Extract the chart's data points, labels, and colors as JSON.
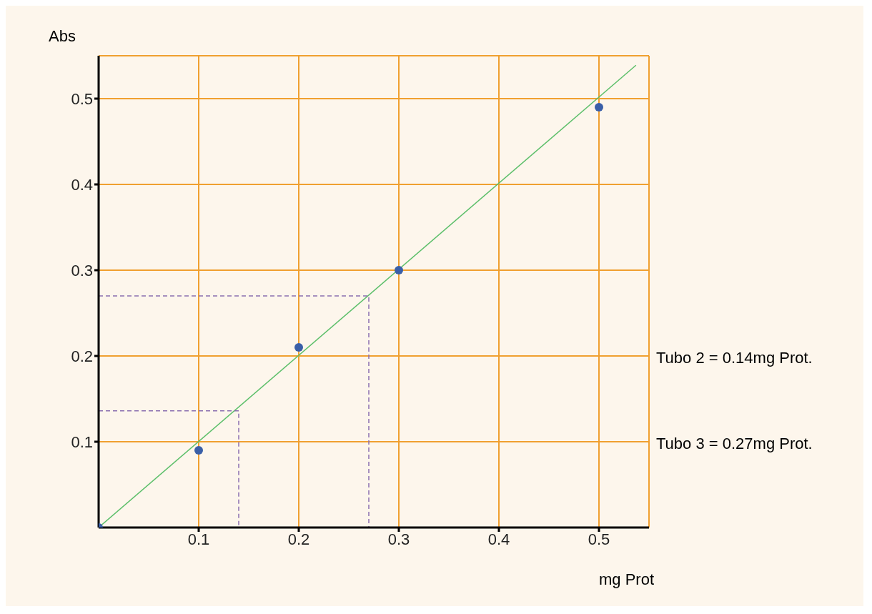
{
  "chart_data": {
    "type": "scatter",
    "xlabel": "mg Prot",
    "ylabel": "Abs",
    "xlim": [
      0,
      0.55
    ],
    "ylim": [
      0,
      0.55
    ],
    "xticks": [
      0.1,
      0.2,
      0.3,
      0.4,
      0.5
    ],
    "yticks": [
      0.1,
      0.2,
      0.3,
      0.4,
      0.5
    ],
    "grid": true,
    "series": [
      {
        "color": "#3a5fa8",
        "marker": "circle",
        "x": [
          0,
          0.1,
          0.2,
          0.3,
          0.5
        ],
        "values": [
          0,
          0.09,
          0.21,
          0.3,
          0.49
        ]
      },
      {
        "type": "line",
        "color": "#5cbf6a",
        "marker": "none",
        "line_style": "solid",
        "x": [
          0,
          0.537
        ],
        "values": [
          0,
          0.539
        ]
      },
      {
        "type": "line",
        "color": "#8a6fb0",
        "marker": "none",
        "line_style": "dashed",
        "x": [
          0,
          0.14,
          0.14
        ],
        "values": [
          0.136,
          0.136,
          0
        ]
      },
      {
        "type": "line",
        "color": "#8a6fb0",
        "marker": "none",
        "line_style": "dashed",
        "x": [
          0,
          0.27,
          0.27
        ],
        "values": [
          0.27,
          0.27,
          0
        ]
      }
    ],
    "annotations": [
      "Tubo 2 = 0.14mg Prot.",
      "Tubo 3 = 0.27mg Prot."
    ]
  }
}
